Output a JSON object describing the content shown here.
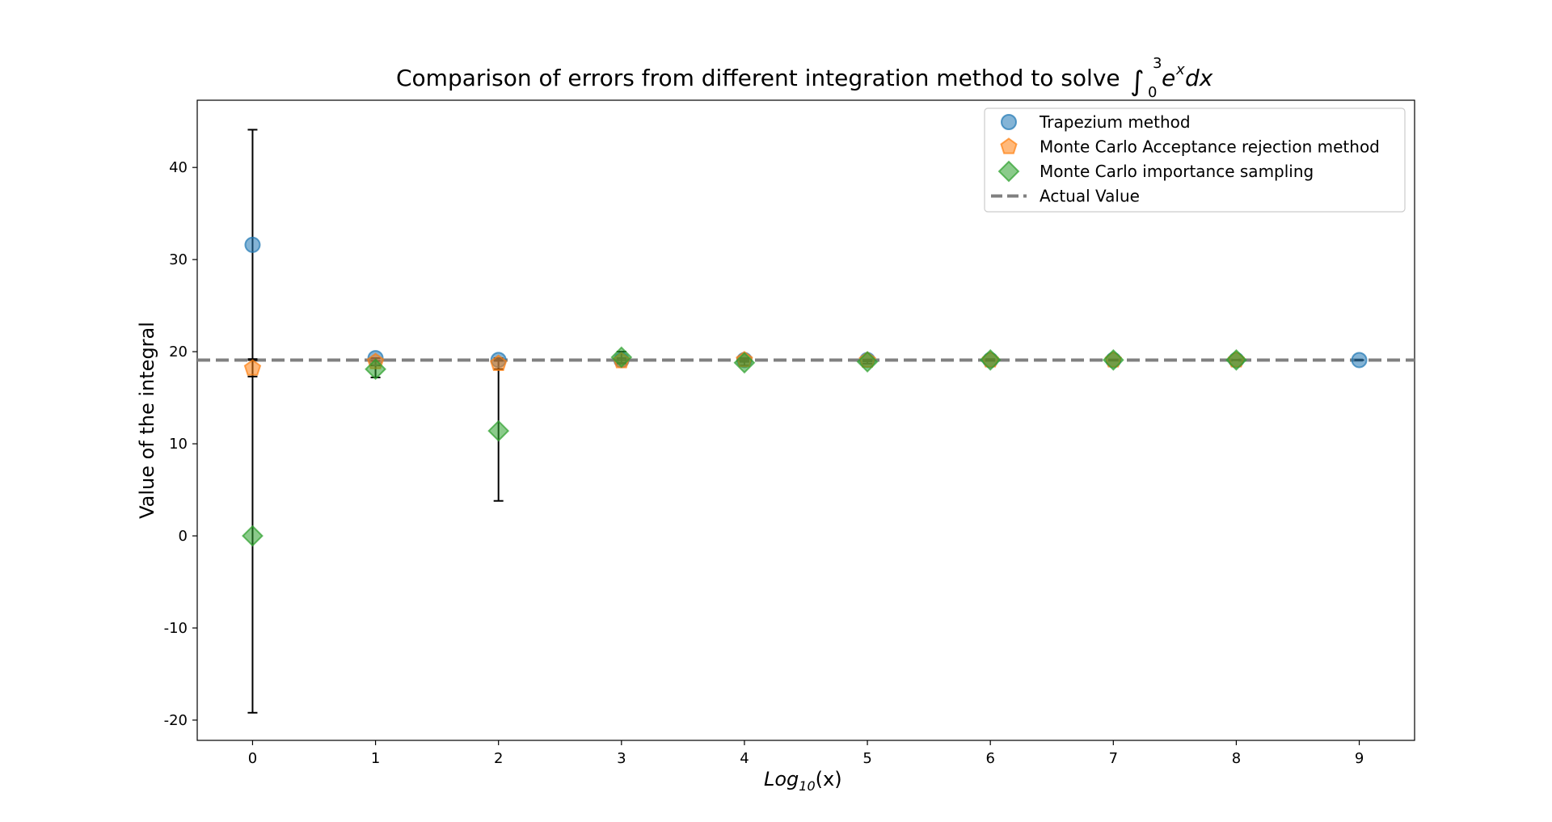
{
  "chart_data": {
    "type": "scatter",
    "title": {
      "main": "Comparison of errors from different integration method to solve ",
      "integral_symbol": "∫",
      "upper_limit": "3",
      "lower_limit": "0",
      "integrand_base": "e",
      "integrand_exp": "x",
      "integrand_tail": "dx"
    },
    "xlabel": {
      "prefix": "Log",
      "subscript": "10",
      "suffix": "(x)"
    },
    "ylabel": "Value of the integral",
    "x_ticks": [
      "0",
      "1",
      "2",
      "3",
      "4",
      "5",
      "6",
      "7",
      "8",
      "9"
    ],
    "y_ticks": [
      "-20",
      "-10",
      "0",
      "10",
      "20",
      "30",
      "40"
    ],
    "xlim": [
      -0.45,
      9.45
    ],
    "ylim": [
      -22.2,
      47.3
    ],
    "grid": false,
    "legend_placement": "top-right",
    "series": [
      {
        "name": "Trapezium method",
        "marker": "circle",
        "color": "#1f77b4",
        "x": [
          0,
          1,
          2,
          3,
          4,
          5,
          6,
          7,
          8,
          9
        ],
        "y": [
          31.6,
          19.3,
          19.1,
          19.09,
          19.09,
          19.09,
          19.09,
          19.09,
          19.09,
          19.09
        ],
        "yerr": [
          12.5,
          0,
          0,
          0,
          0,
          0,
          0,
          0,
          0,
          0
        ]
      },
      {
        "name": "Monte Carlo Acceptance rejection method",
        "marker": "pentagon",
        "color": "#ff7f0e",
        "x": [
          0,
          1,
          2,
          3,
          4,
          5,
          6,
          7,
          8,
          9
        ],
        "y": [
          18.2,
          18.9,
          18.7,
          19.0,
          19.1,
          19.05,
          19.09,
          19.09,
          19.09,
          null
        ],
        "yerr": [
          0.9,
          0.4,
          0.6,
          0.3,
          0.2,
          0.1,
          0.05,
          0.02,
          0.01,
          null
        ]
      },
      {
        "name": "Monte Carlo importance sampling",
        "marker": "diamond",
        "color": "#2ca02c",
        "x": [
          0,
          1,
          2,
          3,
          4,
          5,
          6,
          7,
          8,
          9
        ],
        "y": [
          0.0,
          18.1,
          11.4,
          19.4,
          18.8,
          18.9,
          19.1,
          19.1,
          19.1,
          null
        ],
        "yerr": [
          19.2,
          0.9,
          7.6,
          0.6,
          0.3,
          0.2,
          0.1,
          0.05,
          0.02,
          null
        ]
      }
    ],
    "reference_line": {
      "name": "Actual Value",
      "y": 19.09,
      "style": "dashed",
      "color": "#808080"
    }
  }
}
